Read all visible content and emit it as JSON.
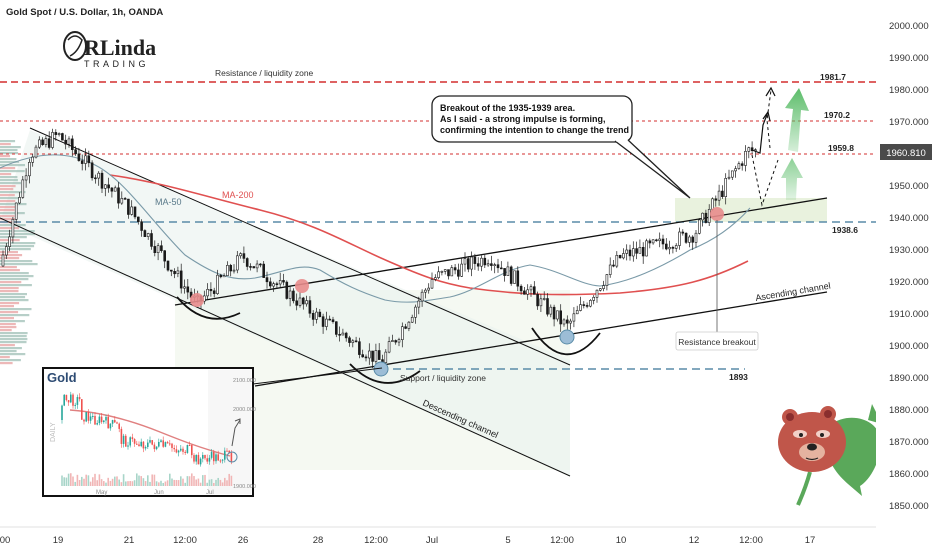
{
  "header": {
    "title": "Gold Spot / U.S. Dollar, 1h, OANDA"
  },
  "logo": {
    "line1": "RLinda",
    "line2": "TRADING"
  },
  "colors": {
    "bull": "#26a69a",
    "bear": "#ef5350",
    "candle": "#1a1a1a",
    "resistance": "#d32f2f",
    "support": "#5a8ca8",
    "ma200": "#e05050",
    "ma50": "#7a9aa8",
    "channel": "#111111",
    "price_tag_bg": "#4a4a4a",
    "arrow_green": "#5cbd6a"
  },
  "axes": {
    "y_ticks": [
      "2000.000",
      "1990.000",
      "1980.000",
      "1970.000",
      "1960.000",
      "1950.000",
      "1940.000",
      "1930.000",
      "1920.000",
      "1910.000",
      "1900.000",
      "1890.000",
      "1880.000",
      "1870.000",
      "1860.000",
      "1850.000"
    ],
    "x_ticks": [
      "00",
      "19",
      "21",
      "12:00",
      "26",
      "28",
      "12:00",
      "Jul",
      "5",
      "12:00",
      "10",
      "12",
      "12:00",
      "17"
    ],
    "current_price": "1960.810"
  },
  "annotations": {
    "resistance_zone": "Resistance / liquidity zone",
    "support_zone": "Support / liquidity zone",
    "ma200": "MA-200",
    "ma50": "MA-50",
    "descending_channel": "Descending channel",
    "ascending_channel": "Ascending channel",
    "resistance_breakout": "Resistance breakout",
    "callout": [
      "Breakout of the 1935-1939 area.",
      "As I said - a strong impulse is forming,",
      "confirming the intention to change the trend"
    ],
    "levels": [
      "1981.7",
      "1970.2",
      "1959.8",
      "1938.6",
      "1893"
    ]
  },
  "inset": {
    "title": "Gold",
    "side_label": "DAILY",
    "y_ticks": [
      "2100.000",
      "2000.000",
      "1900.000"
    ],
    "x_ticks": [
      "May",
      "Jun",
      "Jul"
    ]
  },
  "chart_data": {
    "type": "candlestick",
    "title": "Gold Spot / U.S. Dollar, 1h, OANDA",
    "ylim": [
      1845,
      2005
    ],
    "levels": {
      "resistance_liquidity": 1981.7,
      "level_1970": 1970.2,
      "level_1959": 1959.8,
      "breakout_level": 1938.6,
      "support_liquidity": 1893
    },
    "price_path": [
      {
        "x": "19",
        "y": 1966
      },
      {
        "x": "21",
        "y": 1943
      },
      {
        "x": "21 12:00",
        "y": 1913
      },
      {
        "x": "26",
        "y": 1928
      },
      {
        "x": "28",
        "y": 1909
      },
      {
        "x": "28 12:00",
        "y": 1895
      },
      {
        "x": "Jul",
        "y": 1921
      },
      {
        "x": "5",
        "y": 1928
      },
      {
        "x": "5 12:00",
        "y": 1906
      },
      {
        "x": "10",
        "y": 1928
      },
      {
        "x": "12",
        "y": 1935
      },
      {
        "x": "12 12:00",
        "y": 1961
      }
    ],
    "current_price": 1960.81
  }
}
